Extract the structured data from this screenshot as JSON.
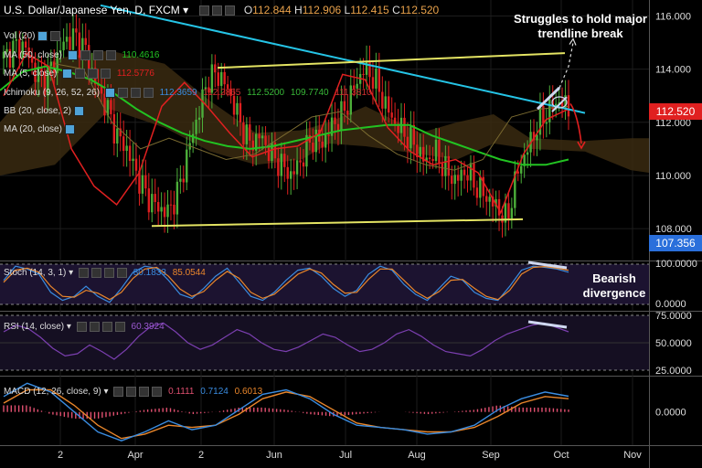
{
  "header": {
    "symbol": "U.S. Dollar/Japanese Yen, D, FXCM",
    "dropdown_icon": "chevron-down-icon",
    "open_label": "O",
    "open": "112.844",
    "high_label": "H",
    "high": "112.906",
    "low_label": "L",
    "low": "112.415",
    "close_label": "C",
    "close": "112.520"
  },
  "indicators": {
    "vol": {
      "label": "Vol (20)"
    },
    "ma50": {
      "label": "MA (50, close)",
      "value": "110.4616",
      "color": "#22c322"
    },
    "ma5": {
      "label": "MA (5, close)",
      "value": "112.5776",
      "color": "#e02020"
    },
    "ichimoku": {
      "label": "Ichimoku (9, 26, 52, 26)",
      "v1": "112.3659",
      "v2": "112.2865",
      "v3": "112.5200",
      "v4": "109.7740",
      "v5": "111.3810"
    },
    "bb": {
      "label": "BB (20, close, 2)"
    },
    "ma20": {
      "label": "MA (20, close)"
    }
  },
  "annotations": {
    "trendline_note": "Struggles to hold major trendline break",
    "divergence_note": "Bearish divergence"
  },
  "price_axis": {
    "current_price": "112.520",
    "current_color": "#e02020",
    "other_price": "107.356",
    "other_color": "#2a6fdb"
  },
  "stoch": {
    "label": "Stoch (14, 3, 1)",
    "k": "80.1833",
    "d": "85.0544"
  },
  "rsi": {
    "label": "RSI (14, close)",
    "value": "60.3924"
  },
  "macd": {
    "label": "MACD (12, 26, close, 9)",
    "hist": "0.1111",
    "macd": "0.7124",
    "signal": "0.6013"
  },
  "chart_data": [
    {
      "type": "candlestick",
      "title": "U.S. Dollar/Japanese Yen, D, FXCM",
      "ylim": [
        106.8,
        116.6
      ],
      "y_ticks": [
        "116.000",
        "114.000",
        "112.000",
        "110.000",
        "108.000"
      ],
      "x_ticks": [
        "2",
        "Apr",
        "2",
        "Jun",
        "Jul",
        "Aug",
        "Sep",
        "Oct",
        "Nov"
      ],
      "close_path": [
        114.4,
        114.8,
        114.9,
        113.9,
        113.6,
        114.3,
        115.1,
        115.2,
        114.7,
        113.4,
        112.6,
        111.5,
        111.0,
        110.0,
        109.2,
        108.8,
        108.6,
        109.4,
        111.0,
        112.4,
        113.7,
        113.8,
        113.1,
        112.0,
        111.2,
        111.5,
        110.8,
        110.4,
        110.0,
        110.6,
        111.4,
        111.2,
        111.9,
        112.3,
        113.2,
        114.0,
        113.7,
        112.8,
        112.0,
        111.6,
        111.2,
        110.5,
        110.9,
        110.2,
        109.8,
        110.2,
        109.6,
        109.2,
        108.8,
        108.3,
        110.1,
        111.0,
        111.9,
        112.4,
        112.8,
        112.5
      ],
      "series": [
        {
          "name": "MA (50, close)",
          "values": [
            113.2,
            113.9,
            114.1,
            113.9,
            113.6,
            113.1,
            112.5,
            112.0,
            111.6,
            111.3,
            111.1,
            111.0,
            111.1,
            111.3,
            111.5,
            111.7,
            111.8,
            111.9,
            111.9,
            111.5,
            111.2,
            110.9,
            110.6,
            110.4,
            110.4,
            110.6
          ]
        },
        {
          "name": "MA (5, close)",
          "values": [
            113.0,
            114.6,
            114.1,
            111.0,
            109.6,
            108.9,
            110.1,
            112.6,
            113.5,
            112.6,
            111.6,
            110.7,
            111.0,
            111.1,
            111.6,
            113.8,
            113.6,
            111.8,
            110.9,
            110.4,
            110.6,
            110.1,
            108.6,
            110.8,
            112.1,
            112.5
          ]
        },
        {
          "name": "MA (20, close)",
          "values": [
            114.2,
            114.0,
            112.0,
            111.0,
            111.4,
            111.0,
            110.6,
            110.8,
            111.5,
            112.2,
            112.4,
            111.5,
            110.8,
            110.4,
            110.2,
            110.6,
            112.2,
            112.5,
            112.6
          ]
        }
      ],
      "trendlines": [
        {
          "color": "#25c4e6",
          "from": [
            112.0,
            116.4
          ],
          "to": [
            112.0,
            112.4
          ]
        },
        {
          "color": "#e4e463",
          "from": [
            114.0,
            114.1
          ],
          "to": [
            114.1,
            114.6
          ]
        },
        {
          "color": "#e4e463",
          "from": [
            108.0,
            108.1
          ],
          "to": [
            108.1,
            108.4
          ]
        }
      ]
    },
    {
      "type": "line",
      "title": "Stoch (14, 3, 1)",
      "ylim": [
        0,
        100
      ],
      "y_ticks": [
        "100.0000",
        "0.0000"
      ],
      "series": [
        {
          "name": "Stoch %K",
          "values": [
            60,
            95,
            88,
            75,
            30,
            10,
            20,
            45,
            20,
            5,
            40,
            80,
            95,
            90,
            60,
            25,
            15,
            40,
            70,
            90,
            55,
            20,
            10,
            30,
            60,
            85,
            90,
            70,
            40,
            20,
            35,
            75,
            95,
            85,
            50,
            25,
            10,
            40,
            70,
            60,
            30,
            15,
            10,
            45,
            85,
            95,
            92,
            88,
            80
          ]
        },
        {
          "name": "Stoch %D",
          "values": [
            55,
            85,
            90,
            80,
            45,
            20,
            18,
            35,
            28,
            12,
            30,
            65,
            88,
            92,
            70,
            38,
            20,
            32,
            60,
            82,
            65,
            30,
            15,
            25,
            50,
            75,
            88,
            78,
            50,
            28,
            30,
            62,
            88,
            88,
            60,
            32,
            15,
            32,
            60,
            62,
            40,
            20,
            12,
            35,
            75,
            92,
            94,
            90,
            85
          ]
        }
      ]
    },
    {
      "type": "line",
      "title": "RSI (14, close)",
      "ylim": [
        25,
        75
      ],
      "y_ticks": [
        "75.0000",
        "50.0000",
        "25.0000"
      ],
      "series": [
        {
          "name": "RSI",
          "values": [
            60,
            66,
            63,
            55,
            45,
            38,
            40,
            48,
            42,
            35,
            44,
            56,
            65,
            68,
            60,
            50,
            44,
            48,
            55,
            62,
            58,
            50,
            44,
            42,
            46,
            52,
            58,
            55,
            48,
            42,
            44,
            50,
            58,
            62,
            56,
            48,
            42,
            40,
            38,
            44,
            52,
            58,
            62,
            66,
            68,
            64,
            60
          ]
        }
      ]
    },
    {
      "type": "line",
      "title": "MACD (12, 26, close, 9)",
      "ylim": [
        -1.5,
        1.6
      ],
      "y_ticks": [
        "0.0000"
      ],
      "series": [
        {
          "name": "MACD",
          "values": [
            0.7,
            1.3,
            0.9,
            0.0,
            -0.9,
            -1.3,
            -0.9,
            -0.4,
            -0.8,
            -0.6,
            0.1,
            0.8,
            1.0,
            0.6,
            -0.1,
            -0.6,
            -0.7,
            -0.8,
            -1.0,
            -0.9,
            -0.6,
            0.1,
            0.6,
            0.9,
            0.71
          ]
        },
        {
          "name": "Signal",
          "values": [
            0.4,
            1.0,
            1.0,
            0.3,
            -0.6,
            -1.2,
            -1.0,
            -0.6,
            -0.7,
            -0.6,
            -0.1,
            0.6,
            0.9,
            0.7,
            0.1,
            -0.5,
            -0.7,
            -0.8,
            -0.9,
            -0.9,
            -0.7,
            -0.2,
            0.4,
            0.7,
            0.6
          ]
        }
      ]
    }
  ]
}
